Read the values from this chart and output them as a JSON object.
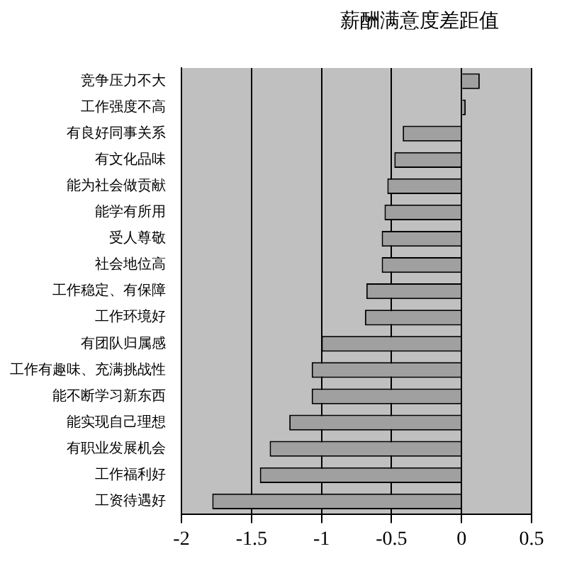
{
  "chart_data": {
    "type": "bar",
    "orientation": "horizontal",
    "title": "薪酬满意度差距值",
    "categories": [
      "竞争压力不大",
      "工作强度不高",
      "有良好同事关系",
      "有文化品味",
      "能为社会做贡献",
      "能学有所用",
      "受人尊敬",
      "社会地位高",
      "工作稳定、有保障",
      "工作环境好",
      "有团队归属感",
      "工作有趣味、充满挑战性",
      "能不断学习新东西",
      "能实现自己理想",
      "有职业发展机会",
      "工作福利好",
      "工资待遇好"
    ],
    "values": [
      0.13,
      0.03,
      -0.42,
      -0.48,
      -0.53,
      -0.55,
      -0.57,
      -0.57,
      -0.68,
      -0.69,
      -1.0,
      -1.07,
      -1.07,
      -1.23,
      -1.37,
      -1.44,
      -1.78
    ],
    "color": "#a0a0a0",
    "xlim": [
      -2,
      0.5
    ],
    "xticks": [
      -2,
      -1.5,
      -1,
      -0.5,
      0,
      0.5
    ],
    "grid": "x",
    "legend": false
  }
}
